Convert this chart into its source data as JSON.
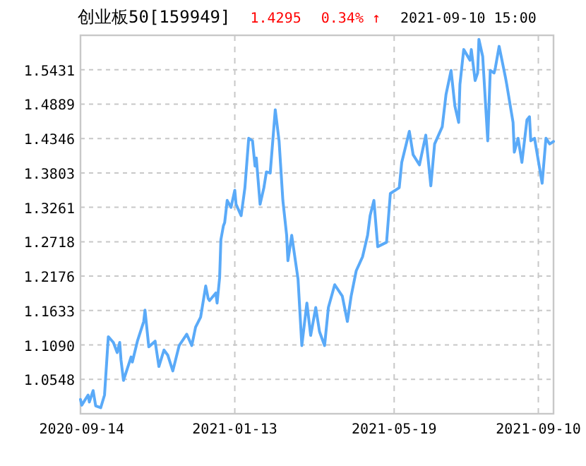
{
  "chart_data": {
    "type": "line",
    "title": "创业板50[159949]",
    "annotations": [
      "1.4295",
      "0.34% ↑",
      "2021-09-10 15:00"
    ],
    "xlim": [
      "2020-09-13",
      "2021-09-22"
    ],
    "xticks": [
      "2020-09-14",
      "2021-01-13",
      "2021-05-19",
      "2021-09-10"
    ],
    "ylim": [
      1.0005,
      1.5974
    ],
    "yticks": [
      {
        "value": 1.0548,
        "label": "1.0548"
      },
      {
        "value": 1.109,
        "label": "1.1090"
      },
      {
        "value": 1.1633,
        "label": "1.1633"
      },
      {
        "value": 1.2176,
        "label": "1.2176"
      },
      {
        "value": 1.2718,
        "label": "1.2718"
      },
      {
        "value": 1.3261,
        "label": "1.3261"
      },
      {
        "value": 1.3803,
        "label": "1.3803"
      },
      {
        "value": 1.4346,
        "label": "1.4346"
      },
      {
        "value": 1.4889,
        "label": "1.4889"
      },
      {
        "value": 1.5431,
        "label": "1.5431"
      }
    ],
    "grid": true,
    "line_style": "solid",
    "series": [
      {
        "color": "#5aaaf8",
        "x": [
          "2020-09-13",
          "2020-09-14",
          "2020-09-19",
          "2020-09-20",
          "2020-09-23",
          "2020-09-25",
          "2020-09-29",
          "2020-10-02",
          "2020-10-05",
          "2020-10-09",
          "2020-10-12",
          "2020-10-14",
          "2020-10-15",
          "2020-10-17",
          "2020-10-23",
          "2020-10-24",
          "2020-10-28",
          "2020-11-02",
          "2020-11-03",
          "2020-11-06",
          "2020-11-11",
          "2020-11-14",
          "2020-11-18",
          "2020-11-21",
          "2020-11-25",
          "2020-11-30",
          "2020-12-06",
          "2020-12-10",
          "2020-12-13",
          "2020-12-17",
          "2020-12-21",
          "2020-12-23",
          "2020-12-24",
          "2020-12-29",
          "2020-12-30",
          "2021-01-01",
          "2021-01-02",
          "2021-01-04",
          "2021-01-05",
          "2021-01-07",
          "2021-01-10",
          "2021-01-13",
          "2021-01-14",
          "2021-01-18",
          "2021-01-20",
          "2021-01-21",
          "2021-01-24",
          "2021-01-27",
          "2021-01-29",
          "2021-01-30",
          "2021-02-02",
          "2021-02-05",
          "2021-02-07",
          "2021-02-10",
          "2021-02-14",
          "2021-02-17",
          "2021-02-20",
          "2021-02-23",
          "2021-02-24",
          "2021-02-27",
          "2021-03-04",
          "2021-03-07",
          "2021-03-11",
          "2021-03-14",
          "2021-03-18",
          "2021-03-21",
          "2021-03-25",
          "2021-03-28",
          "2021-04-02",
          "2021-04-08",
          "2021-04-12",
          "2021-04-15",
          "2021-04-19",
          "2021-04-24",
          "2021-04-28",
          "2021-04-30",
          "2021-05-03",
          "2021-05-06",
          "2021-05-13",
          "2021-05-16",
          "2021-05-23",
          "2021-05-25",
          "2021-05-31",
          "2021-06-03",
          "2021-06-08",
          "2021-06-13",
          "2021-06-17",
          "2021-06-20",
          "2021-06-26",
          "2021-06-29",
          "2021-07-03",
          "2021-07-06",
          "2021-07-09",
          "2021-07-10",
          "2021-07-13",
          "2021-07-18",
          "2021-07-19",
          "2021-07-22",
          "2021-07-24",
          "2021-07-25",
          "2021-07-28",
          "2021-08-01",
          "2021-08-03",
          "2021-08-06",
          "2021-08-07",
          "2021-08-10",
          "2021-08-15",
          "2021-08-16",
          "2021-08-21",
          "2021-08-22",
          "2021-08-25",
          "2021-08-28",
          "2021-09-01",
          "2021-09-03",
          "2021-09-04",
          "2021-09-07",
          "2021-09-13",
          "2021-09-16",
          "2021-09-19",
          "2021-09-22"
        ],
        "values": [
          1.023,
          1.014,
          1.03,
          1.019,
          1.037,
          1.013,
          1.01,
          1.03,
          1.122,
          1.113,
          1.097,
          1.113,
          1.086,
          1.053,
          1.09,
          1.082,
          1.115,
          1.146,
          1.164,
          1.106,
          1.115,
          1.075,
          1.101,
          1.093,
          1.068,
          1.108,
          1.126,
          1.108,
          1.137,
          1.153,
          1.202,
          1.182,
          1.179,
          1.191,
          1.175,
          1.215,
          1.275,
          1.297,
          1.302,
          1.337,
          1.326,
          1.353,
          1.331,
          1.313,
          1.342,
          1.357,
          1.435,
          1.431,
          1.391,
          1.404,
          1.331,
          1.357,
          1.382,
          1.38,
          1.48,
          1.431,
          1.337,
          1.282,
          1.242,
          1.282,
          1.213,
          1.108,
          1.175,
          1.124,
          1.168,
          1.13,
          1.108,
          1.168,
          1.204,
          1.186,
          1.146,
          1.186,
          1.226,
          1.248,
          1.282,
          1.313,
          1.337,
          1.264,
          1.271,
          1.348,
          1.357,
          1.397,
          1.446,
          1.409,
          1.393,
          1.44,
          1.36,
          1.426,
          1.453,
          1.504,
          1.542,
          1.486,
          1.46,
          1.52,
          1.575,
          1.558,
          1.575,
          1.526,
          1.538,
          1.591,
          1.564,
          1.431,
          1.542,
          1.538,
          1.546,
          1.58,
          1.531,
          1.52,
          1.46,
          1.413,
          1.435,
          1.397,
          1.464,
          1.469,
          1.431,
          1.435,
          1.364,
          1.435,
          1.426,
          1.43
        ]
      }
    ]
  }
}
